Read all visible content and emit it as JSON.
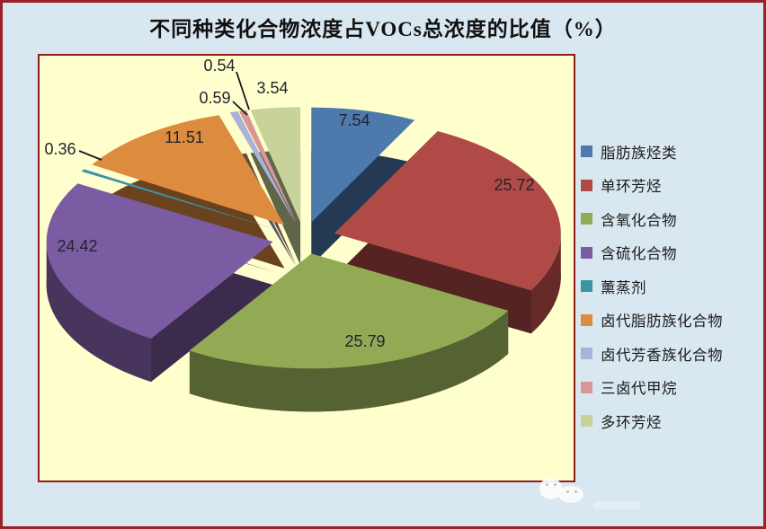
{
  "title": "不同种类化合物浓度占VOCs总浓度的比值（%）",
  "window": {
    "background_color": "#d9e7f0",
    "frame_color": "#9b2126"
  },
  "plot": {
    "background_color": "#ffffcd",
    "border_color": "#8f1d1d",
    "label_color": "#23232e"
  },
  "chart_data": {
    "type": "pie",
    "style": "3d-exploded",
    "title": "不同种类化合物浓度占VOCs总浓度的比值（%）",
    "unit": "%",
    "start_angle": "12-oclock",
    "direction": "clockwise",
    "legend_position": "right",
    "data_labels_shown": true,
    "slices": [
      {
        "label": "脂肪族烃类",
        "value": 7.54,
        "color": "#4d79ad"
      },
      {
        "label": "单环芳烃",
        "value": 25.72,
        "color": "#b04a47"
      },
      {
        "label": "含氧化合物",
        "value": 25.79,
        "color": "#93aa55"
      },
      {
        "label": "含硫化合物",
        "value": 24.42,
        "color": "#7b5ca3"
      },
      {
        "label": "薰蒸剂",
        "value": 0.36,
        "color": "#3b93a5"
      },
      {
        "label": "卤代脂肪族化合物",
        "value": 11.51,
        "color": "#dd8b3f"
      },
      {
        "label": "卤代芳香族化合物",
        "value": 0.59,
        "color": "#a9b3d7"
      },
      {
        "label": "三卤代甲烷",
        "value": 0.54,
        "color": "#d89795"
      },
      {
        "label": "多环芳烃",
        "value": 3.54,
        "color": "#c8d39b"
      }
    ]
  }
}
